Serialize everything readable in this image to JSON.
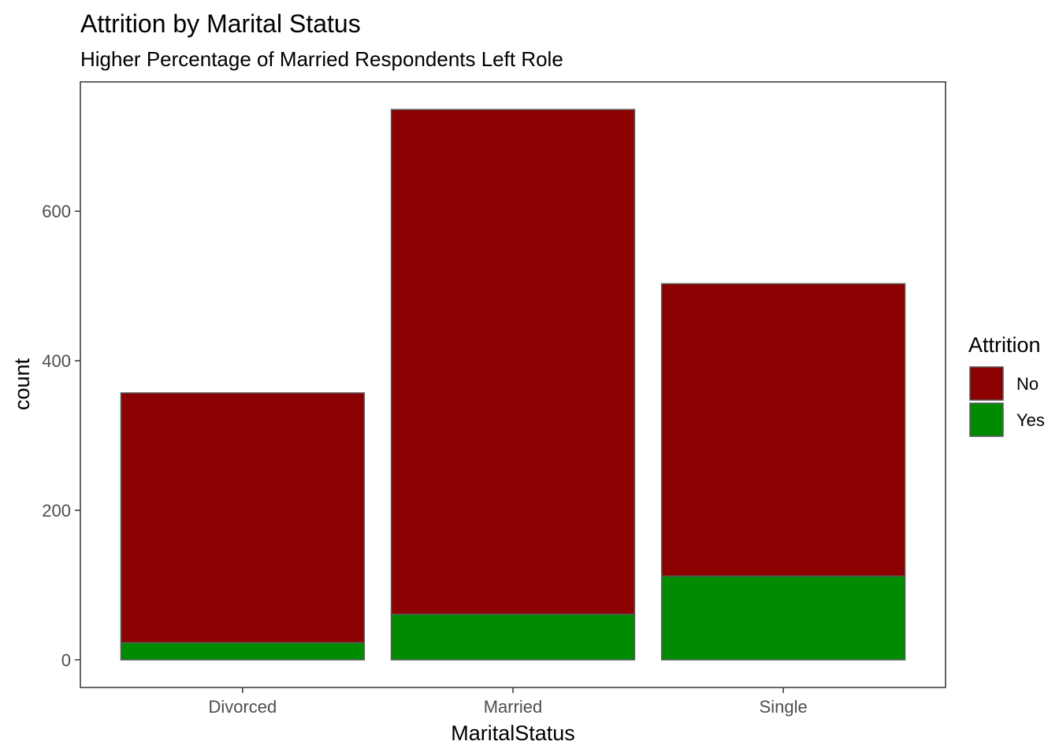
{
  "chart_data": {
    "type": "bar",
    "stacked": true,
    "title": "Attrition by Marital Status",
    "subtitle": "Higher Percentage of Married Respondents Left Role",
    "xlabel": "MaritalStatus",
    "ylabel": "count",
    "categories": [
      "Divorced",
      "Married",
      "Single"
    ],
    "series": [
      {
        "name": "No",
        "color": "#8b0000",
        "values": [
          334,
          675,
          391
        ]
      },
      {
        "name": "Yes",
        "color": "#008b00",
        "values": [
          23,
          61,
          112
        ]
      }
    ],
    "ylim": [
      -37,
      773
    ],
    "yticks": [
      0,
      200,
      400,
      600
    ],
    "grid": false,
    "legend": {
      "title": "Attrition",
      "position": "right"
    },
    "bar_outline_color": "#595959"
  }
}
